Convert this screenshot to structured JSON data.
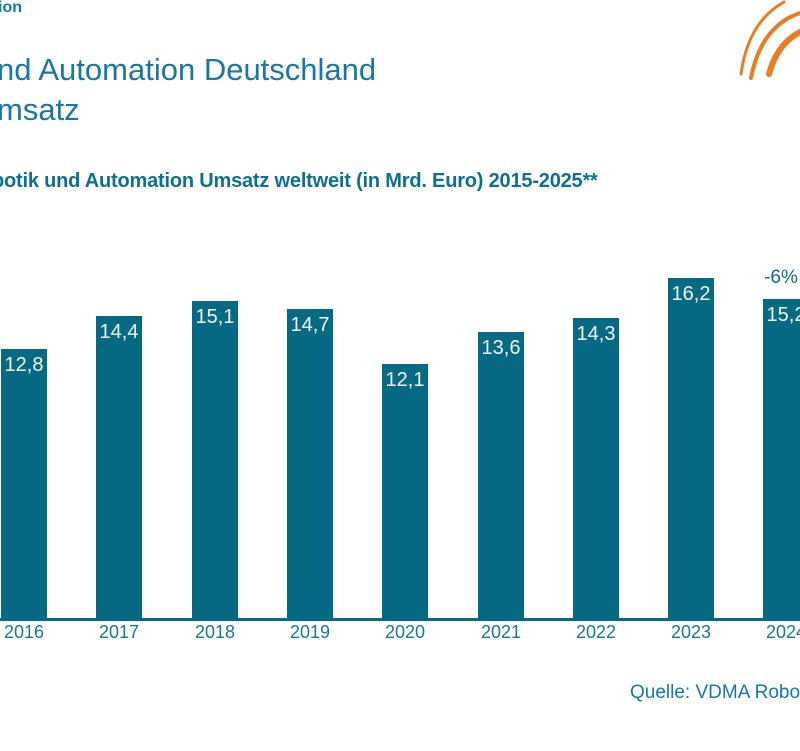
{
  "page": {
    "background": "#ffffff"
  },
  "colors": {
    "bar_teal": "#076a85",
    "title_teal": "#1878a2",
    "subtitle_teal": "#0d7092",
    "tick_teal": "#17789b",
    "annotation_teal": "#0d6e8c",
    "source_teal": "#1579a0",
    "value_label": "#f4f4f4",
    "logo_orange": "#e87d22"
  },
  "header": {
    "brand_fragment": "ion",
    "title_line1": "nd Automation Deutschland",
    "title_line2": "msatz",
    "logo_icon": "vdma-arcs-logo"
  },
  "chart_data": {
    "type": "bar",
    "title": "botik und Automation Umsatz weltweit (in Mrd. Euro) 2015-2025**",
    "categories": [
      "2016",
      "2017",
      "2018",
      "2019",
      "2020",
      "2021",
      "2022",
      "2023",
      "2024"
    ],
    "values": [
      12.8,
      14.4,
      15.1,
      14.7,
      12.1,
      13.6,
      14.3,
      16.2,
      15.2
    ],
    "value_labels": [
      "12,8",
      "14,4",
      "15,1",
      "14,7",
      "12,1",
      "13,6",
      "14,3",
      "16,2",
      "15,2"
    ],
    "unit": "Mrd. Euro",
    "ylim": [
      0,
      18
    ],
    "grid": false,
    "legend": "none",
    "value_label_position": "inside-top",
    "annotation": {
      "text": "-6%",
      "category": "2024"
    }
  },
  "footer": {
    "source": "Quelle: VDMA Robo"
  }
}
